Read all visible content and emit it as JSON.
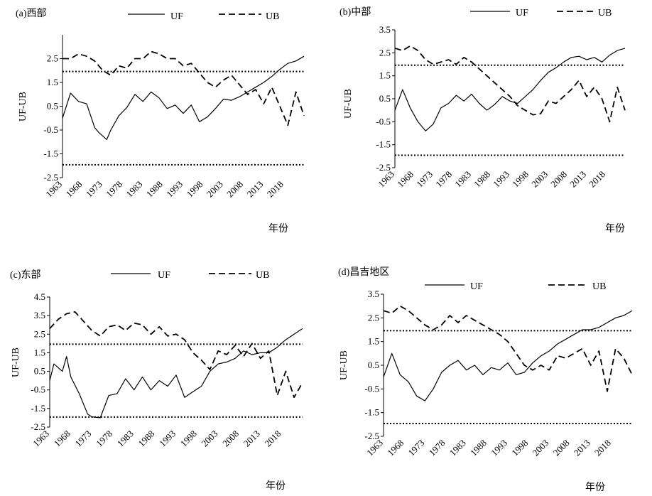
{
  "chart_data": [
    {
      "type": "line",
      "title": "(a)西部",
      "ylabel": "UF-UB",
      "xlabel": "年份",
      "ylim": [
        -2.5,
        3.5
      ],
      "yticks": [
        "-2.5",
        "-1.5",
        "-0.5",
        "0.5",
        "1.5",
        "2.5"
      ],
      "xticks": [
        "1963",
        "1968",
        "1973",
        "1978",
        "1983",
        "1988",
        "1993",
        "1998",
        "2003",
        "2008",
        "2013",
        "2018"
      ],
      "confidence": [
        1.96,
        -1.96
      ],
      "series": [
        {
          "name": "UF",
          "style": "solid",
          "x": [
            1963,
            1965,
            1967,
            1969,
            1971,
            1972,
            1974,
            1975,
            1977,
            1979,
            1981,
            1983,
            1985,
            1987,
            1989,
            1991,
            1993,
            1995,
            1997,
            1999,
            2001,
            2003,
            2005,
            2007,
            2009,
            2011,
            2013,
            2015,
            2017,
            2019,
            2021,
            2023
          ],
          "values": [
            0.0,
            1.05,
            0.7,
            0.6,
            -0.4,
            -0.6,
            -0.9,
            -0.5,
            0.1,
            0.45,
            1.0,
            0.7,
            1.1,
            0.85,
            0.4,
            0.55,
            0.2,
            0.55,
            -0.15,
            0.05,
            0.4,
            0.8,
            0.75,
            0.9,
            1.1,
            1.3,
            1.5,
            1.75,
            2.05,
            2.3,
            2.4,
            2.6
          ]
        },
        {
          "name": "UB",
          "style": "dashed",
          "x": [
            1963,
            1965,
            1967,
            1969,
            1971,
            1973,
            1975,
            1977,
            1979,
            1981,
            1983,
            1985,
            1987,
            1989,
            1991,
            1993,
            1995,
            1997,
            1999,
            2001,
            2003,
            2005,
            2007,
            2009,
            2011,
            2013,
            2015,
            2017,
            2019,
            2021,
            2023
          ],
          "values": [
            2.5,
            2.5,
            2.7,
            2.6,
            2.4,
            2.0,
            1.8,
            2.2,
            2.1,
            2.5,
            2.5,
            2.8,
            2.7,
            2.5,
            2.5,
            2.2,
            2.3,
            1.9,
            1.5,
            1.3,
            1.6,
            1.8,
            1.4,
            1.0,
            1.2,
            0.6,
            1.3,
            0.5,
            -0.3,
            1.1,
            0.1
          ]
        }
      ]
    },
    {
      "type": "line",
      "title": "(b)中部",
      "ylabel": "UF-UB",
      "xlabel": "年份",
      "ylim": [
        -2.5,
        3.5
      ],
      "yticks": [
        "-2.5",
        "-1.5",
        "-0.5",
        "0.5",
        "1.5",
        "2.5",
        "3.5"
      ],
      "xticks": [
        "1963",
        "1968",
        "1973",
        "1978",
        "1983",
        "1988",
        "1993",
        "1998",
        "2003",
        "2008",
        "2013",
        "2018"
      ],
      "confidence": [
        1.96,
        -1.96
      ],
      "series": [
        {
          "name": "UF",
          "style": "solid",
          "x": [
            1963,
            1965,
            1967,
            1969,
            1971,
            1973,
            1975,
            1977,
            1979,
            1981,
            1983,
            1985,
            1987,
            1989,
            1991,
            1993,
            1995,
            1997,
            1999,
            2001,
            2003,
            2005,
            2007,
            2009,
            2011,
            2013,
            2015,
            2017,
            2019,
            2021,
            2023
          ],
          "values": [
            0.0,
            0.9,
            0.1,
            -0.5,
            -0.9,
            -0.6,
            0.1,
            0.3,
            0.65,
            0.4,
            0.7,
            0.3,
            0.0,
            0.25,
            0.6,
            0.4,
            0.3,
            0.6,
            0.9,
            1.3,
            1.65,
            1.85,
            2.1,
            2.3,
            2.35,
            2.2,
            2.3,
            2.1,
            2.4,
            2.6,
            2.7
          ]
        },
        {
          "name": "UB",
          "style": "dashed",
          "x": [
            1963,
            1965,
            1967,
            1969,
            1971,
            1973,
            1975,
            1977,
            1979,
            1981,
            1983,
            1985,
            1987,
            1989,
            1991,
            1993,
            1995,
            1997,
            1999,
            2001,
            2003,
            2005,
            2007,
            2009,
            2011,
            2013,
            2015,
            2017,
            2019,
            2021,
            2023
          ],
          "values": [
            2.7,
            2.6,
            2.8,
            2.6,
            2.2,
            2.0,
            2.1,
            2.2,
            2.0,
            2.3,
            2.1,
            1.8,
            1.5,
            1.2,
            0.9,
            0.6,
            0.2,
            0.0,
            -0.2,
            -0.15,
            0.4,
            0.3,
            0.6,
            0.9,
            1.3,
            0.6,
            1.0,
            0.5,
            -0.5,
            1.0,
            0.0
          ]
        }
      ]
    },
    {
      "type": "line",
      "title": "(c)东部",
      "ylabel": "UF-UB",
      "xlabel": "年份",
      "ylim": [
        -2.5,
        4.5
      ],
      "yticks": [
        "-2.5",
        "-1.5",
        "-0.5",
        "0.5",
        "1.5",
        "2.5",
        "3.5",
        "4.5"
      ],
      "xticks": [
        "1963",
        "1968",
        "1973",
        "1978",
        "1983",
        "1988",
        "1993",
        "1998",
        "2003",
        "2008",
        "2013",
        "2018"
      ],
      "confidence": [
        1.96,
        -1.96
      ],
      "series": [
        {
          "name": "UF",
          "style": "solid",
          "x": [
            1963,
            1964,
            1966,
            1967,
            1968,
            1970,
            1972,
            1973,
            1975,
            1977,
            1979,
            1981,
            1983,
            1985,
            1987,
            1989,
            1991,
            1993,
            1995,
            1997,
            1999,
            2001,
            2003,
            2005,
            2007,
            2009,
            2011,
            2013,
            2015,
            2017,
            2019,
            2021,
            2023
          ],
          "values": [
            0.0,
            0.9,
            0.5,
            1.3,
            0.2,
            -0.7,
            -1.8,
            -1.95,
            -2.0,
            -0.8,
            -0.7,
            0.1,
            -0.5,
            0.2,
            -0.5,
            0.0,
            -0.3,
            0.3,
            -0.9,
            -0.6,
            -0.3,
            0.5,
            0.9,
            1.0,
            1.2,
            1.6,
            1.4,
            1.5,
            1.5,
            1.8,
            2.2,
            2.5,
            2.8
          ]
        },
        {
          "name": "UB",
          "style": "dashed",
          "x": [
            1963,
            1965,
            1967,
            1969,
            1971,
            1973,
            1975,
            1977,
            1979,
            1981,
            1983,
            1985,
            1987,
            1989,
            1991,
            1993,
            1995,
            1997,
            1999,
            2001,
            2003,
            2005,
            2007,
            2009,
            2011,
            2013,
            2015,
            2017,
            2019,
            2021,
            2023
          ],
          "values": [
            2.8,
            3.3,
            3.6,
            3.7,
            3.2,
            2.7,
            2.4,
            2.9,
            3.0,
            2.7,
            3.1,
            3.0,
            2.5,
            2.9,
            2.4,
            2.5,
            2.2,
            1.5,
            1.1,
            0.6,
            1.6,
            1.4,
            1.9,
            1.3,
            2.0,
            1.2,
            1.6,
            -0.8,
            0.5,
            -0.9,
            -0.1
          ]
        }
      ]
    },
    {
      "type": "line",
      "title": "(d)昌吉地区",
      "ylabel": "UF-UB",
      "xlabel": "年份",
      "ylim": [
        -2.5,
        3.5
      ],
      "yticks": [
        "-2.5",
        "-1.5",
        "-0.5",
        "0.5",
        "1.5",
        "2.5",
        "3.5"
      ],
      "xticks": [
        "1963",
        "1968",
        "1973",
        "1978",
        "1983",
        "1988",
        "1993",
        "1998",
        "2003",
        "2008",
        "2013",
        "2018"
      ],
      "confidence": [
        1.96,
        -1.96
      ],
      "series": [
        {
          "name": "UF",
          "style": "solid",
          "x": [
            1963,
            1965,
            1967,
            1969,
            1971,
            1973,
            1975,
            1977,
            1979,
            1981,
            1983,
            1985,
            1987,
            1989,
            1991,
            1993,
            1995,
            1997,
            1999,
            2001,
            2003,
            2005,
            2007,
            2009,
            2011,
            2013,
            2015,
            2017,
            2019,
            2021,
            2023
          ],
          "values": [
            0.0,
            1.0,
            0.1,
            -0.2,
            -0.8,
            -1.0,
            -0.5,
            0.2,
            0.5,
            0.7,
            0.3,
            0.5,
            0.1,
            0.4,
            0.3,
            0.6,
            0.1,
            0.2,
            0.6,
            0.9,
            1.1,
            1.4,
            1.6,
            1.8,
            2.0,
            2.0,
            2.1,
            2.3,
            2.5,
            2.6,
            2.8
          ]
        },
        {
          "name": "UB",
          "style": "dashed",
          "x": [
            1963,
            1965,
            1967,
            1969,
            1971,
            1973,
            1975,
            1977,
            1979,
            1981,
            1983,
            1985,
            1987,
            1989,
            1991,
            1993,
            1995,
            1997,
            1999,
            2001,
            2003,
            2005,
            2007,
            2009,
            2011,
            2013,
            2015,
            2017,
            2019,
            2021,
            2023
          ],
          "values": [
            2.8,
            2.7,
            3.0,
            2.8,
            2.5,
            2.2,
            2.0,
            2.2,
            2.6,
            2.3,
            2.6,
            2.4,
            2.2,
            2.0,
            1.8,
            1.5,
            1.0,
            0.5,
            0.3,
            0.5,
            0.3,
            0.9,
            0.8,
            1.0,
            1.2,
            0.5,
            1.1,
            -0.6,
            1.2,
            0.8,
            0.1
          ]
        }
      ]
    }
  ]
}
